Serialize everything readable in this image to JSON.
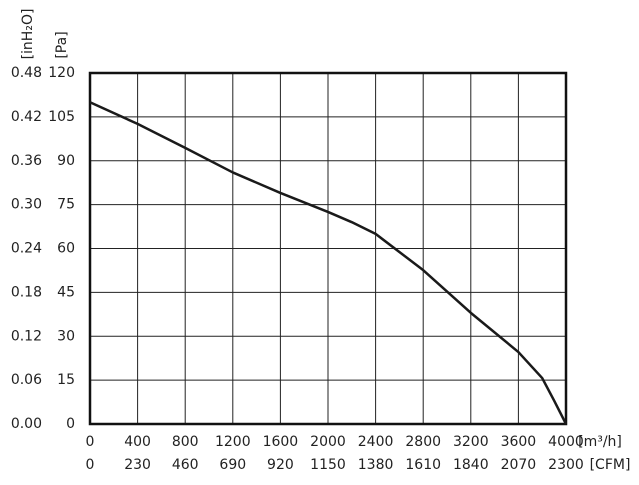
{
  "chart_data": {
    "type": "line",
    "x": [
      0,
      400,
      800,
      1200,
      1600,
      2000,
      2200,
      2400,
      2800,
      3200,
      3600,
      3800,
      3900,
      4000
    ],
    "values": [
      110,
      102.6,
      94.4,
      86,
      79,
      72.5,
      69,
      65,
      52.6,
      38,
      24.6,
      15.7,
      8,
      0
    ],
    "color": "#1a1a1a",
    "xlim": [
      0,
      4000
    ],
    "xticks": [
      0,
      400,
      800,
      1200,
      1600,
      2000,
      2400,
      2800,
      3200,
      3600,
      4000
    ],
    "x2lim": [
      0,
      2300
    ],
    "x2ticks": [
      0,
      230,
      460,
      690,
      920,
      1150,
      1380,
      1610,
      1840,
      2070,
      2300
    ],
    "ylim": [
      0,
      120
    ],
    "yticks": [
      0,
      15,
      30,
      45,
      60,
      75,
      90,
      105,
      120
    ],
    "y2lim": [
      0,
      0.48
    ],
    "y2ticks": [
      {
        "value": 0,
        "label": "0.00"
      },
      {
        "value": 0.06,
        "label": "0.06"
      },
      {
        "value": 0.12,
        "label": "0.12"
      },
      {
        "value": 0.18,
        "label": "0.18"
      },
      {
        "value": 0.24,
        "label": "0.24"
      },
      {
        "value": 0.3,
        "label": "0.30"
      },
      {
        "value": 0.36,
        "label": "0.36"
      },
      {
        "value": 0.42,
        "label": "0.42"
      },
      {
        "value": 0.48,
        "label": "0.48"
      }
    ],
    "xlabel": "[m³/h]",
    "x2label": "[CFM]",
    "ylabel": "[Pa]",
    "y2label": "[inH₂O]",
    "grid": true
  }
}
